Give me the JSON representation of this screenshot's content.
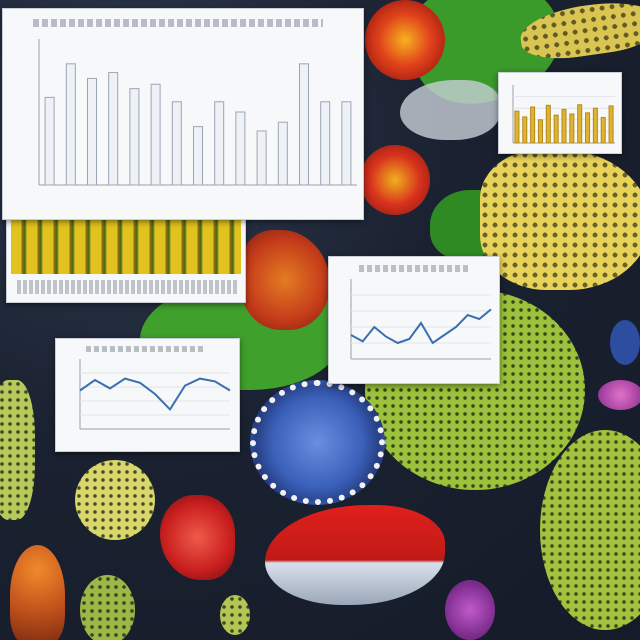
{
  "scene": {
    "colors": {
      "background": "#1a2130",
      "leaf_green": "#3f9b2b",
      "mesh_green": "#9bc23a",
      "flower_red": "#d8321d",
      "leopard_yellow": "#e8d35a",
      "coral_red": "#c81e1e",
      "cell_blue": "#3a5fb8",
      "panel_bg": "#f7f8fa",
      "bar_fill": "#eef2f6",
      "bar_stroke": "#9aa6b4",
      "gold_bar": "#e0b330",
      "line_blue": "#3a6fb0"
    },
    "elements": [
      "green-leaves",
      "red-flowers",
      "leopard-creature",
      "green-mesh-spheres",
      "blue-spotted-cell",
      "red-fish",
      "coral-orange-fungus",
      "white-bird"
    ]
  },
  "chart_data": [
    {
      "type": "bar",
      "title": "",
      "values": [
        60,
        83,
        73,
        77,
        66,
        69,
        57,
        40,
        57,
        50,
        37,
        43,
        83,
        57,
        57
      ],
      "ylim": [
        0,
        100
      ],
      "grid": false
    },
    {
      "type": "bar",
      "title": "",
      "values": [
        55,
        45,
        62,
        40,
        65,
        48,
        58,
        50,
        66,
        52,
        60,
        44,
        64
      ],
      "ylim": [
        0,
        100
      ],
      "grid": true
    },
    {
      "type": "line",
      "title": "",
      "values": [
        30,
        22,
        40,
        28,
        20,
        25,
        45,
        20,
        30,
        40,
        55,
        50,
        62
      ],
      "ylim": [
        0,
        100
      ],
      "grid": true
    },
    {
      "type": "line",
      "title": "",
      "values": [
        55,
        70,
        58,
        72,
        66,
        50,
        28,
        62,
        72,
        68,
        55
      ],
      "ylim": [
        0,
        100
      ],
      "grid": true
    }
  ]
}
